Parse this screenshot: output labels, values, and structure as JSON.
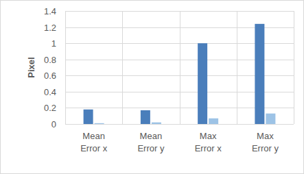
{
  "chart_data": {
    "type": "bar",
    "y_label": "Pixel",
    "categories": [
      "Mean Error x",
      "Mean Error y",
      "Max Error x",
      "Max Error y"
    ],
    "series": [
      {
        "color": "#4a7ebb",
        "values": [
          0.18,
          0.17,
          1.0,
          1.24
        ]
      },
      {
        "color": "#9dc3e6",
        "values": [
          0.01,
          0.02,
          0.07,
          0.13
        ]
      }
    ],
    "ylim": [
      0,
      1.4
    ],
    "yticks": [
      0,
      0.2,
      0.4,
      0.6,
      0.8,
      1,
      1.2,
      1.4
    ],
    "grid": true
  }
}
